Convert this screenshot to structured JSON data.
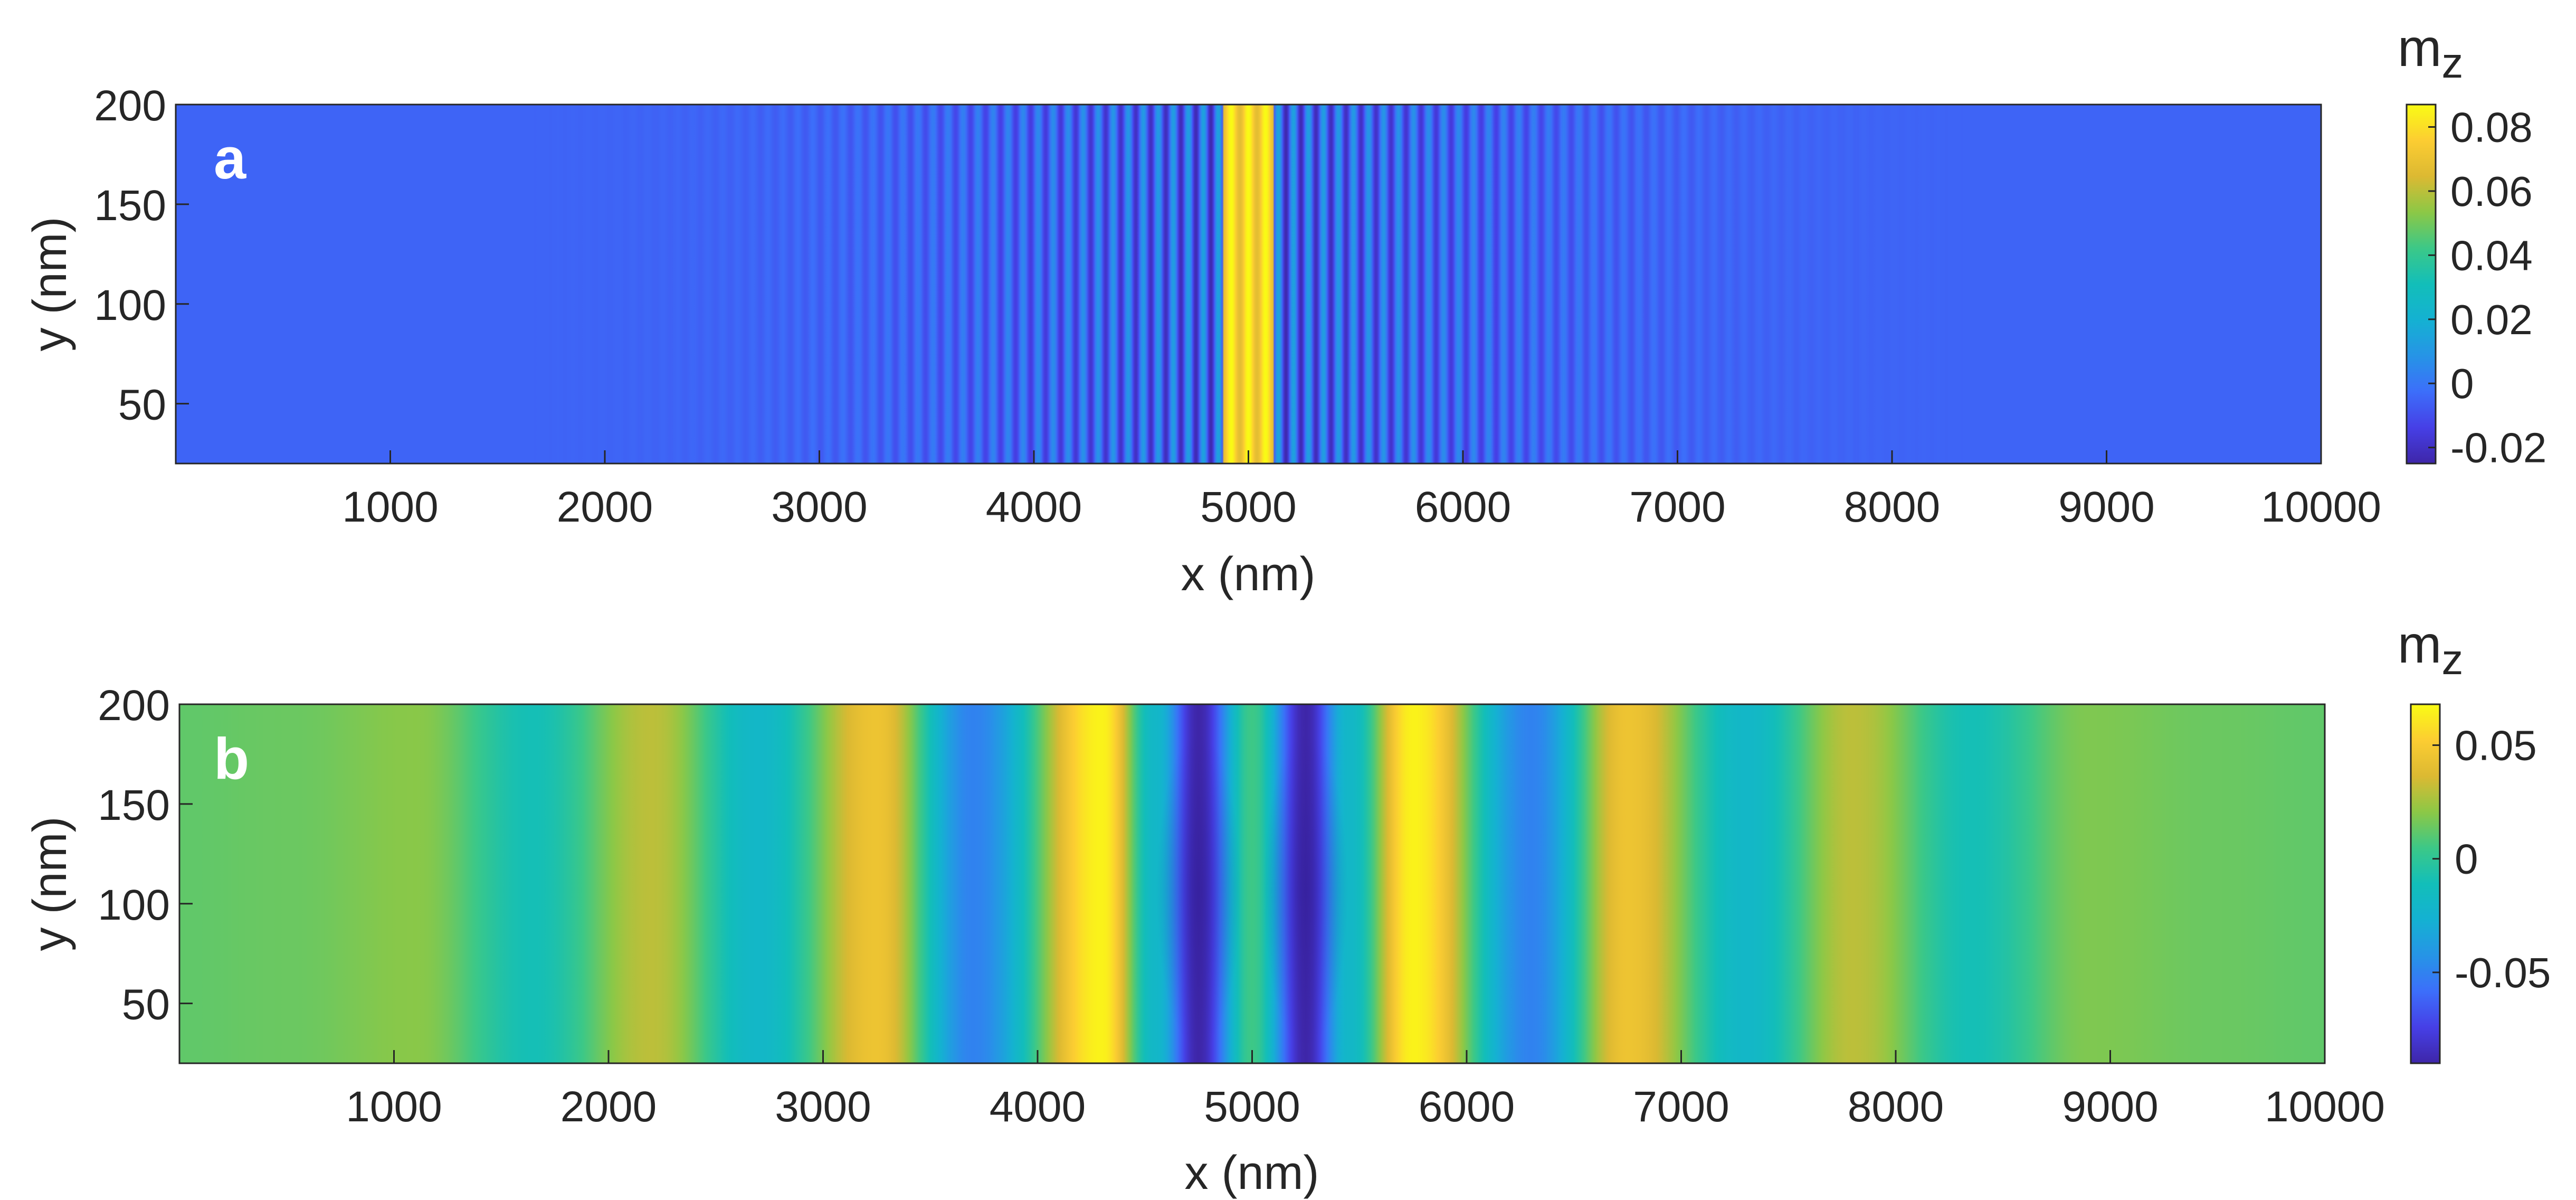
{
  "chart_data": [
    {
      "type": "heatmap",
      "panel_label": "a",
      "xlabel": "x (nm)",
      "ylabel": "y (nm)",
      "xlim": [
        0,
        10000
      ],
      "ylim": [
        20,
        200
      ],
      "xticks": [
        1000,
        2000,
        3000,
        4000,
        5000,
        6000,
        7000,
        8000,
        9000,
        10000
      ],
      "yticks": [
        50,
        100,
        150,
        200
      ],
      "colorbar": {
        "label_main": "m",
        "label_sub": "z",
        "range": [
          -0.025,
          0.087
        ],
        "ticks": [
          -0.02,
          0,
          0.02,
          0.04,
          0.06,
          0.08
        ],
        "ticklabels": [
          "-0.02",
          "0",
          "0.02",
          "0.04",
          "0.06",
          "0.08"
        ]
      },
      "pattern": {
        "description": "uniform along y; fine oscillating fringes centred at x = 5000, bright maximum at centre",
        "center_x": 5000,
        "baseline": -0.005,
        "peak": 0.087,
        "fringe_period_nm": 70,
        "envelope_halfwidth_nm": 1500
      }
    },
    {
      "type": "heatmap",
      "panel_label": "b",
      "xlabel": "x (nm)",
      "ylabel": "y (nm)",
      "xlim": [
        0,
        10000
      ],
      "ylim": [
        20,
        200
      ],
      "xticks": [
        1000,
        2000,
        3000,
        4000,
        5000,
        6000,
        7000,
        8000,
        9000,
        10000
      ],
      "yticks": [
        50,
        100,
        150,
        200
      ],
      "colorbar": {
        "label_main": "m",
        "label_sub": "z",
        "range": [
          -0.09,
          0.068
        ],
        "ticks": [
          -0.05,
          0,
          0.05
        ],
        "ticklabels": [
          "-0.05",
          "0",
          "0.05"
        ]
      },
      "pattern": {
        "description": "broad standing-wave bands symmetric about x = 5000; minima darkest near y = 110",
        "profile_x": [
          0,
          500,
          1100,
          1650,
          2200,
          2700,
          3250,
          3700,
          4300,
          4550,
          4750,
          5000,
          5250,
          5450,
          5750,
          6300,
          6750,
          7300,
          7800,
          8350,
          8900,
          9500,
          10000
        ],
        "profile_mz": [
          0.012,
          0.014,
          0.02,
          -0.01,
          0.03,
          -0.02,
          0.045,
          -0.05,
          0.065,
          -0.02,
          -0.09,
          0.005,
          -0.09,
          -0.02,
          0.065,
          -0.05,
          0.045,
          -0.02,
          0.03,
          -0.01,
          0.018,
          0.014,
          0.012
        ]
      }
    }
  ]
}
